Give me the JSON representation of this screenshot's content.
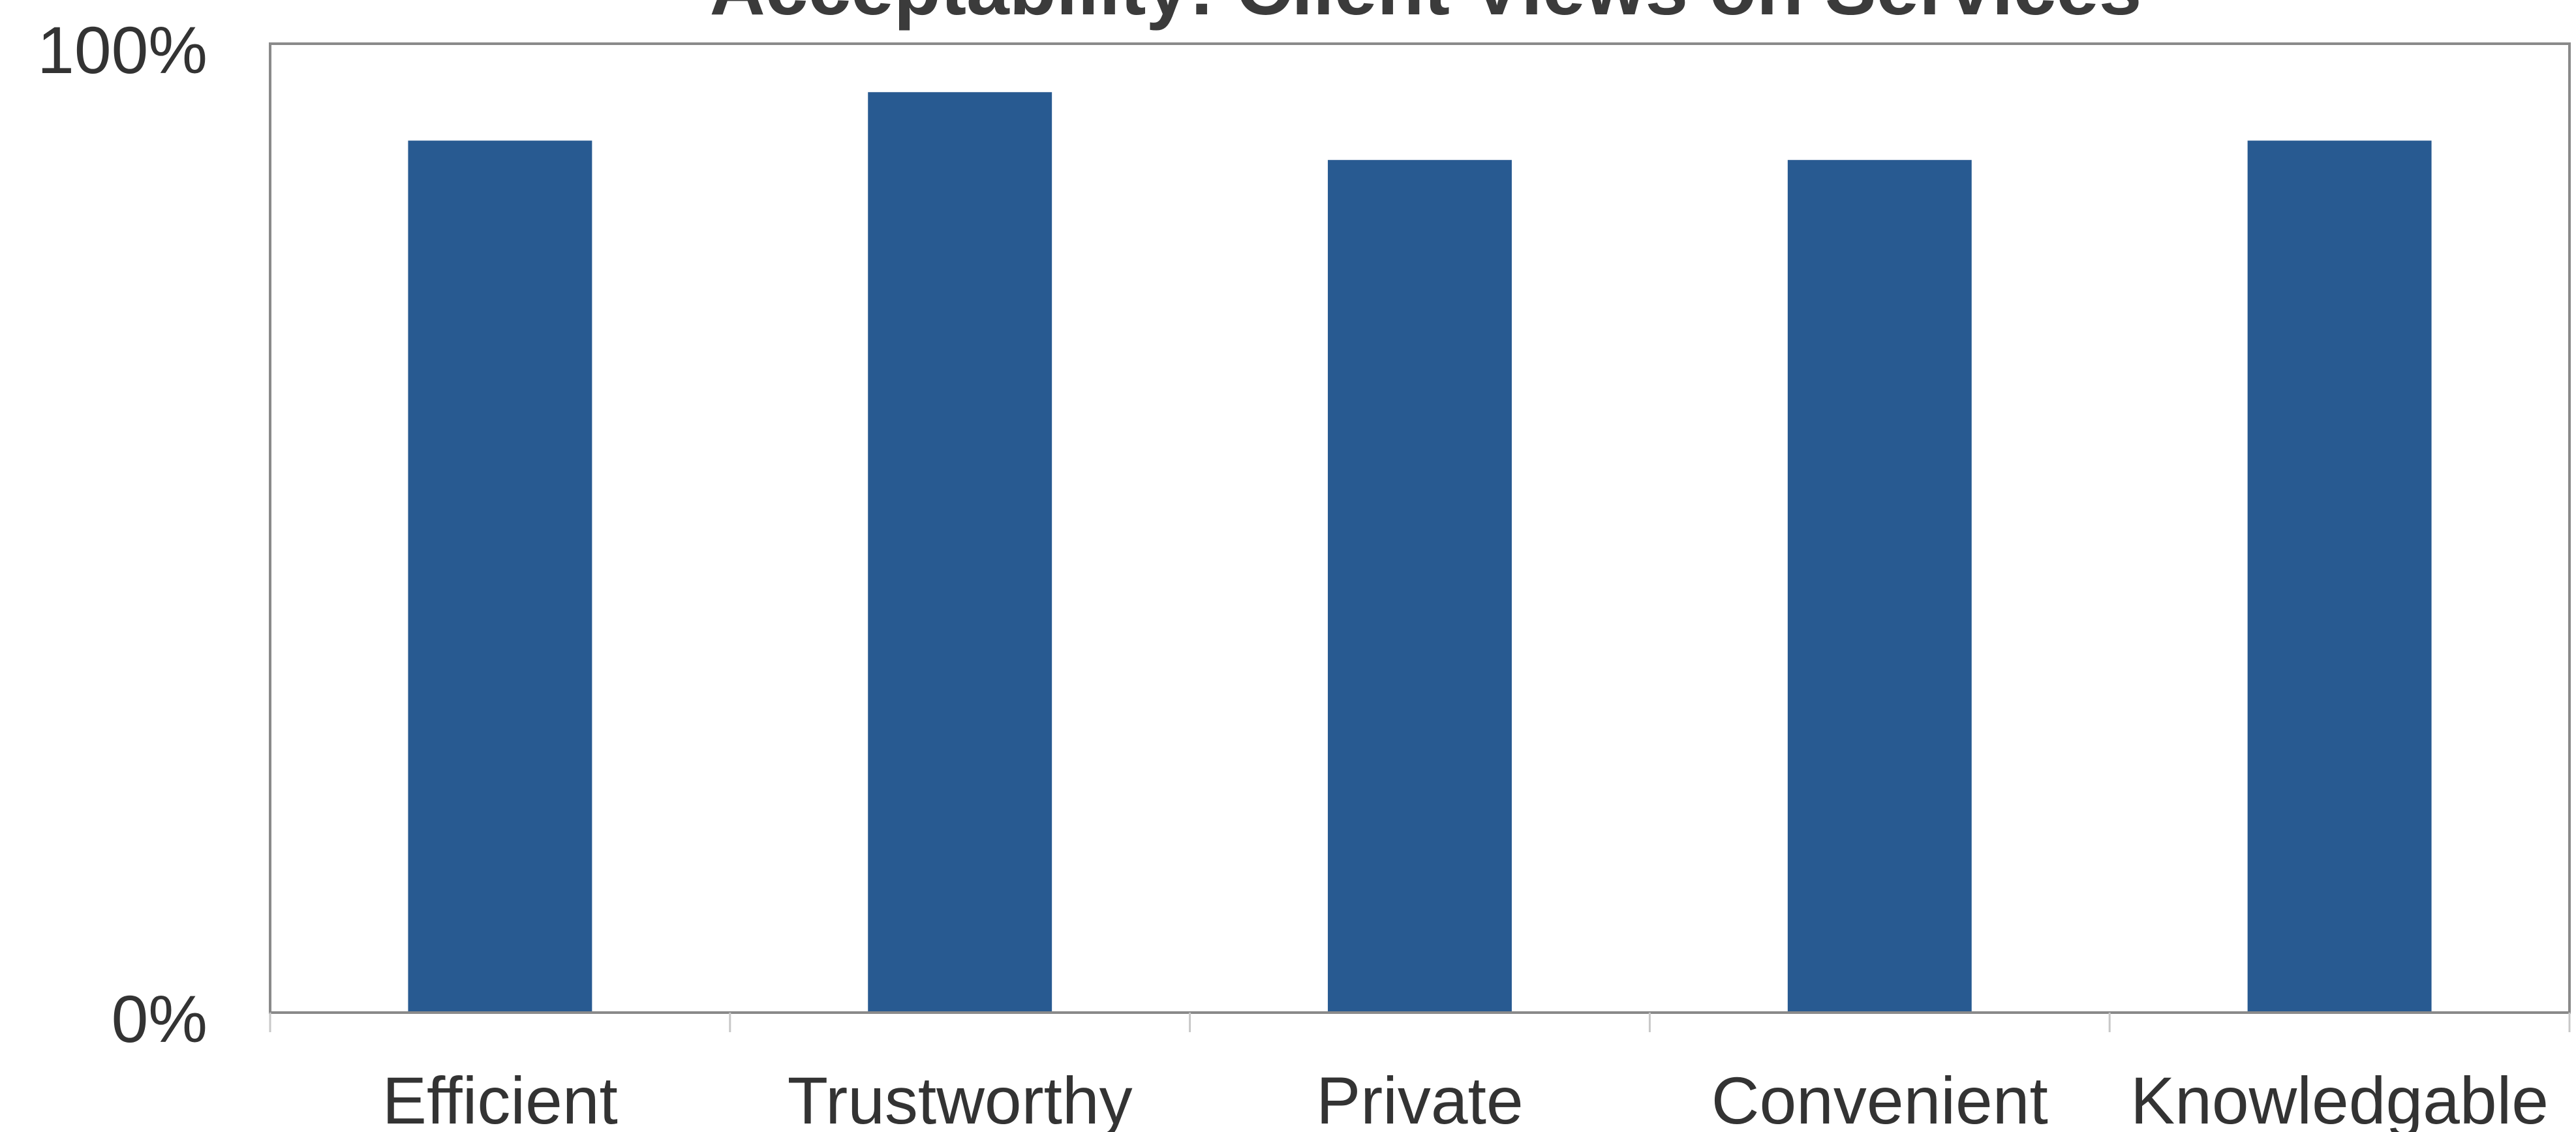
{
  "chart_data": {
    "type": "bar",
    "title": "Acceptability: Client Views on Services",
    "categories": [
      "Efficient",
      "Trustworthy",
      "Private",
      "Convenient",
      "Knowledgable"
    ],
    "values": [
      90,
      95,
      88,
      88,
      90
    ],
    "ylim": [
      0,
      100
    ],
    "yticks": [
      "0%",
      "100%"
    ],
    "xlabel": "",
    "ylabel": "",
    "grid": false,
    "bar_color": "#285a91",
    "axis_color": "#888888",
    "text_color": "#333333"
  }
}
